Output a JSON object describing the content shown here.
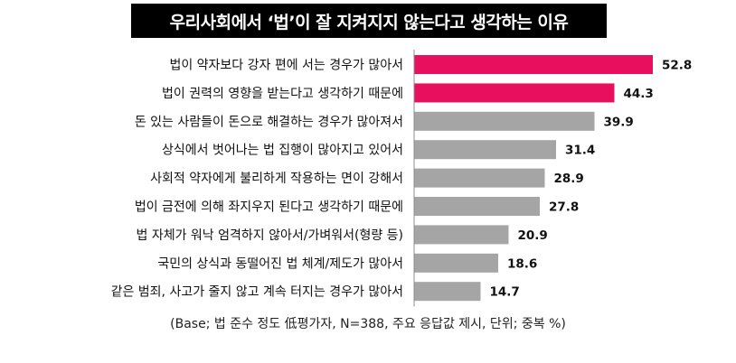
{
  "chart_data": {
    "type": "bar",
    "orientation": "horizontal",
    "title": "우리사회에서 ‘법’이 잘 지켜지지 않는다고 생각하는 이유",
    "categories": [
      "법이 약자보다 강자 편에 서는 경우가 많아서",
      "법이 권력의 영향을 받는다고 생각하기 때문에",
      "돈 있는 사람들이 돈으로 해결하는 경우가 많아져서",
      "상식에서 벗어나는 법 집행이 많아지고 있어서",
      "사회적 약자에게 불리하게 작용하는 면이 강해서",
      "법이 금전에 의해 좌지우지 된다고 생각하기 때문에",
      "법 자체가 워낙 엄격하지 않아서/가벼워서(형량 등)",
      "국민의 상식과 동떨어진 법 체계/제도가 많아서",
      "같은 범죄, 사고가 줄지 않고 계속 터지는 경우가 많아서"
    ],
    "value_labels": [
      "52.8",
      "44.3",
      "39.9",
      "31.4",
      "28.9",
      "27.8",
      "20.9",
      "18.6",
      "14.7"
    ],
    "values": [
      52.8,
      44.3,
      39.9,
      31.4,
      28.9,
      27.8,
      20.9,
      18.6,
      14.7
    ],
    "xlim": [
      0,
      60
    ],
    "grid": false,
    "legend": "none",
    "note": "(Base; 법 준수 정도 低평가자, N=388, 주요 응답값 제시, 단위; 중복 %)"
  },
  "colors": {
    "highlight": "#e8105e",
    "default": "#a5a5a5",
    "axis": "#8c8c8c",
    "title_bg": "#000000"
  },
  "highlight_count": 2
}
